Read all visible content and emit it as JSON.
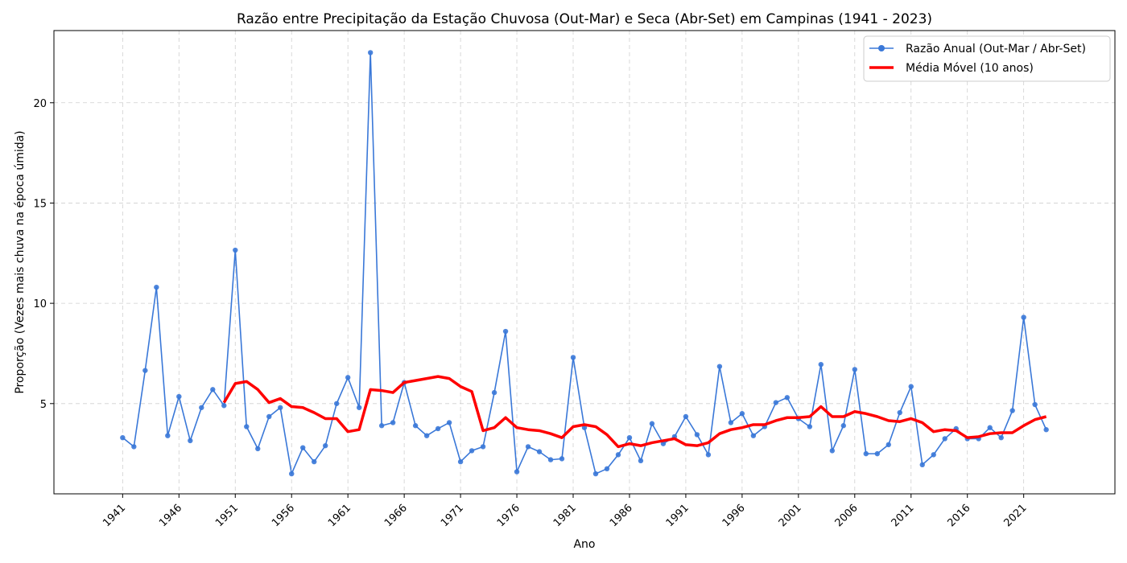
{
  "chart_data": {
    "type": "line",
    "title": "Razão entre Precipitação da Estação Chuvosa (Out-Mar) e Seca (Abr-Set) em Campinas (1941 - 2023)",
    "xlabel": "Ano",
    "ylabel": "Proporção (Vezes mais chuva na época úmida)",
    "xlim": [
      1934.9,
      2029.1
    ],
    "ylim": [
      0.5,
      23.6
    ],
    "grid": true,
    "legend_position": "top-right",
    "x_ticks": [
      1941,
      1946,
      1951,
      1956,
      1961,
      1966,
      1971,
      1976,
      1981,
      1986,
      1991,
      1996,
      2001,
      2006,
      2011,
      2016,
      2021
    ],
    "y_ticks": [
      5,
      10,
      15,
      20
    ],
    "series": [
      {
        "name": "Razão Anual (Out-Mar / Abr-Set)",
        "color": "#3a78d8",
        "marker": "circle",
        "x": [
          1941,
          1942,
          1943,
          1944,
          1945,
          1946,
          1947,
          1948,
          1949,
          1950,
          1951,
          1952,
          1953,
          1954,
          1955,
          1956,
          1957,
          1958,
          1959,
          1960,
          1961,
          1962,
          1963,
          1964,
          1965,
          1966,
          1967,
          1968,
          1969,
          1970,
          1971,
          1972,
          1973,
          1974,
          1975,
          1976,
          1977,
          1978,
          1979,
          1980,
          1981,
          1982,
          1983,
          1984,
          1985,
          1986,
          1987,
          1988,
          1989,
          1990,
          1991,
          1992,
          1993,
          1994,
          1995,
          1996,
          1997,
          1998,
          1999,
          2000,
          2001,
          2002,
          2003,
          2004,
          2005,
          2006,
          2007,
          2008,
          2009,
          2010,
          2011,
          2012,
          2013,
          2014,
          2015,
          2016,
          2017,
          2018,
          2019,
          2020,
          2021,
          2022,
          2023
        ],
        "values": [
          3.3,
          2.85,
          6.65,
          10.8,
          3.4,
          5.35,
          3.15,
          4.8,
          5.7,
          4.9,
          12.65,
          3.85,
          2.75,
          4.35,
          4.8,
          1.5,
          2.8,
          2.1,
          2.9,
          5.0,
          6.3,
          4.8,
          22.5,
          3.9,
          4.05,
          6.05,
          3.9,
          3.4,
          3.75,
          4.05,
          2.1,
          2.65,
          2.85,
          5.55,
          8.6,
          1.6,
          2.85,
          2.6,
          2.2,
          2.25,
          7.3,
          3.8,
          1.5,
          1.75,
          2.45,
          3.3,
          2.15,
          4.0,
          3.0,
          3.35,
          4.35,
          3.45,
          2.45,
          6.85,
          4.05,
          4.5,
          3.4,
          3.85,
          5.05,
          5.3,
          4.25,
          3.85,
          6.95,
          2.65,
          3.9,
          6.7,
          2.5,
          2.5,
          2.95,
          4.55,
          5.85,
          1.95,
          2.45,
          3.25,
          3.75,
          3.25,
          3.25,
          3.8,
          3.3,
          4.65,
          9.3,
          4.95,
          3.7
        ]
      },
      {
        "name": "Média Móvel (10 anos)",
        "color": "#ff0000",
        "x": [
          1950,
          1951,
          1952,
          1953,
          1954,
          1955,
          1956,
          1957,
          1958,
          1959,
          1960,
          1961,
          1962,
          1963,
          1964,
          1965,
          1966,
          1967,
          1968,
          1969,
          1970,
          1971,
          1972,
          1973,
          1974,
          1975,
          1976,
          1977,
          1978,
          1979,
          1980,
          1981,
          1982,
          1983,
          1984,
          1985,
          1986,
          1987,
          1988,
          1989,
          1990,
          1991,
          1992,
          1993,
          1994,
          1995,
          1996,
          1997,
          1998,
          1999,
          2000,
          2001,
          2002,
          2003,
          2004,
          2005,
          2006,
          2007,
          2008,
          2009,
          2010,
          2011,
          2012,
          2013,
          2014,
          2015,
          2016,
          2017,
          2018,
          2019,
          2020,
          2021,
          2022,
          2023
        ],
        "values": [
          5.05,
          6.0,
          6.1,
          5.7,
          5.05,
          5.25,
          4.85,
          4.8,
          4.55,
          4.25,
          4.25,
          3.6,
          3.7,
          5.7,
          5.65,
          5.55,
          6.05,
          6.15,
          6.25,
          6.35,
          6.25,
          5.85,
          5.6,
          3.65,
          3.8,
          4.3,
          3.8,
          3.7,
          3.65,
          3.5,
          3.3,
          3.85,
          3.95,
          3.85,
          3.45,
          2.85,
          3.0,
          2.9,
          3.05,
          3.15,
          3.25,
          2.95,
          2.9,
          3.05,
          3.5,
          3.7,
          3.8,
          3.95,
          3.95,
          4.15,
          4.3,
          4.3,
          4.35,
          4.85,
          4.35,
          4.35,
          4.6,
          4.5,
          4.35,
          4.15,
          4.1,
          4.25,
          4.05,
          3.6,
          3.7,
          3.65,
          3.3,
          3.35,
          3.5,
          3.55,
          3.55,
          3.9,
          4.2,
          4.35
        ]
      }
    ]
  }
}
